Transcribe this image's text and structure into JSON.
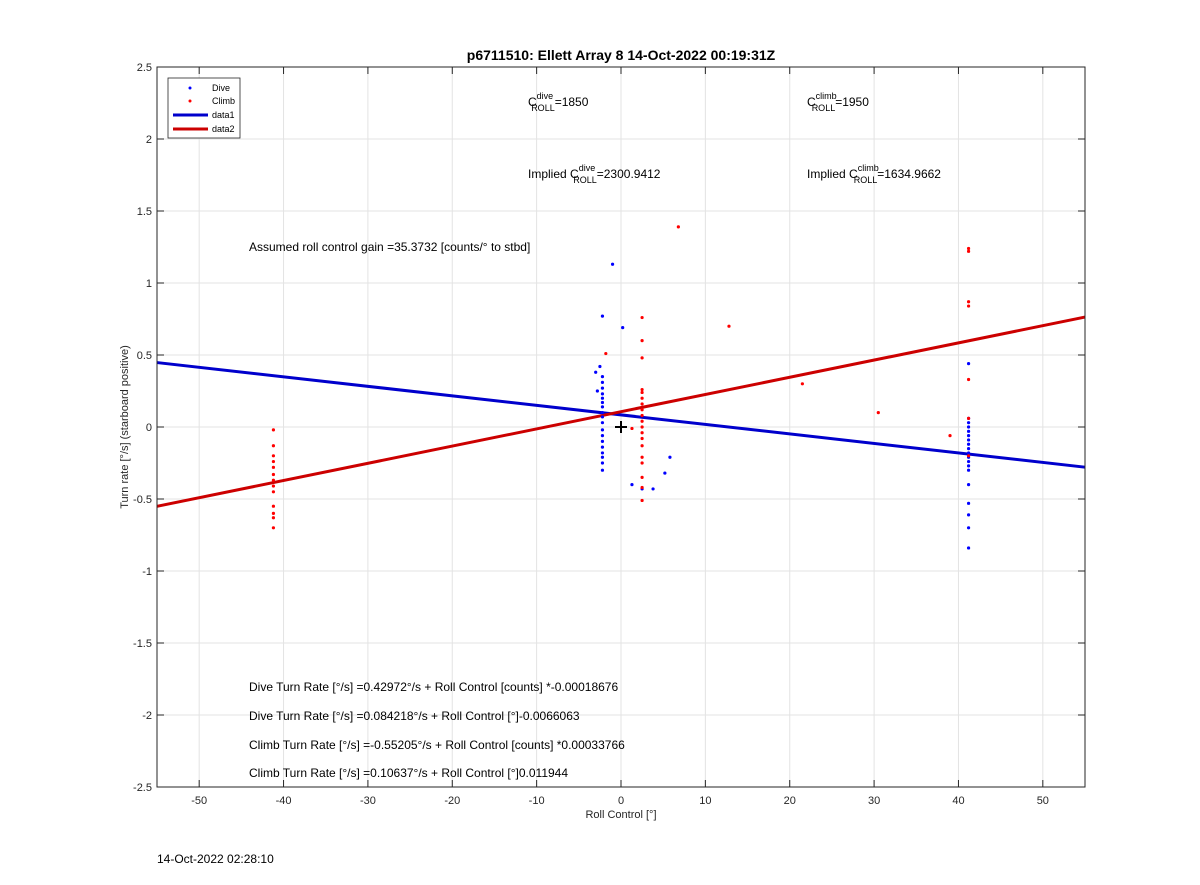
{
  "chart_data": {
    "type": "scatter",
    "title": "p6711510: Ellett Array 8 14-Oct-2022 00:19:31Z",
    "xlabel": "Roll Control [°]",
    "ylabel": "Turn rate [°/s] (starboard positive)",
    "xlim": [
      -55,
      55
    ],
    "ylim": [
      -2.5,
      2.5
    ],
    "xticks": [
      -50,
      -40,
      -30,
      -20,
      -10,
      0,
      10,
      20,
      30,
      40,
      50
    ],
    "yticks": [
      -2.5,
      -2,
      -1.5,
      -1,
      -0.5,
      0,
      0.5,
      1,
      1.5,
      2,
      2.5
    ],
    "xtick_labels": [
      "-50",
      "-40",
      "-30",
      "-20",
      "-10",
      "0",
      "10",
      "20",
      "30",
      "40",
      "50"
    ],
    "ytick_labels": [
      "-2.5",
      "-2",
      "-1.5",
      "-1",
      "-0.5",
      "0",
      "0.5",
      "1",
      "1.5",
      "2",
      "2.5"
    ],
    "grid": true,
    "legend_placement": "top-left",
    "series": [
      {
        "name": "Dive",
        "kind": "points",
        "color": "#0000ff",
        "points": [
          [
            -1,
            1.13
          ],
          [
            -2.2,
            0.77
          ],
          [
            0.2,
            0.69
          ],
          [
            -2.5,
            0.42
          ],
          [
            -3,
            0.38
          ],
          [
            -2.2,
            0.35
          ],
          [
            -2.2,
            0.31
          ],
          [
            -2.2,
            0.27
          ],
          [
            -2.2,
            0.23
          ],
          [
            -2.8,
            0.25
          ],
          [
            -2.2,
            0.2
          ],
          [
            -2.2,
            0.17
          ],
          [
            -2.2,
            0.14
          ],
          [
            -2.2,
            0.1
          ],
          [
            -2.2,
            0.07
          ],
          [
            -2.2,
            0.03
          ],
          [
            -2.2,
            -0.02
          ],
          [
            -2.2,
            -0.06
          ],
          [
            -2.2,
            -0.1
          ],
          [
            -2.2,
            -0.14
          ],
          [
            -2.2,
            -0.18
          ],
          [
            -2.2,
            -0.21
          ],
          [
            -2.2,
            -0.25
          ],
          [
            -2.2,
            -0.3
          ],
          [
            1.3,
            -0.4
          ],
          [
            2.5,
            -0.43
          ],
          [
            3.8,
            -0.43
          ],
          [
            5.2,
            -0.32
          ],
          [
            5.8,
            -0.21
          ],
          [
            41.2,
            0.44
          ],
          [
            41.2,
            0.06
          ],
          [
            41.2,
            0.03
          ],
          [
            41.2,
            0.0
          ],
          [
            41.2,
            -0.03
          ],
          [
            41.2,
            -0.06
          ],
          [
            41.2,
            -0.09
          ],
          [
            41.2,
            -0.12
          ],
          [
            41.2,
            -0.15
          ],
          [
            41.2,
            -0.18
          ],
          [
            41.2,
            -0.21
          ],
          [
            41.2,
            -0.24
          ],
          [
            41.2,
            -0.27
          ],
          [
            41.2,
            -0.3
          ],
          [
            41.2,
            -0.4
          ],
          [
            41.2,
            -0.53
          ],
          [
            41.2,
            -0.61
          ],
          [
            41.2,
            -0.7
          ],
          [
            41.2,
            -0.84
          ]
        ]
      },
      {
        "name": "Climb",
        "kind": "points",
        "color": "#ff0000",
        "points": [
          [
            -41.2,
            -0.02
          ],
          [
            -41.2,
            -0.13
          ],
          [
            -41.2,
            -0.2
          ],
          [
            -41.2,
            -0.24
          ],
          [
            -41.2,
            -0.28
          ],
          [
            -41.2,
            -0.33
          ],
          [
            -41.2,
            -0.37
          ],
          [
            -41.2,
            -0.41
          ],
          [
            -41.2,
            -0.45
          ],
          [
            -41.2,
            -0.55
          ],
          [
            -41.2,
            -0.6
          ],
          [
            -41.2,
            -0.63
          ],
          [
            -41.2,
            -0.7
          ],
          [
            6.8,
            1.39
          ],
          [
            -1.8,
            0.51
          ],
          [
            2.5,
            0.76
          ],
          [
            2.5,
            0.6
          ],
          [
            2.5,
            0.48
          ],
          [
            2.5,
            0.26
          ],
          [
            2.5,
            0.24
          ],
          [
            2.5,
            0.2
          ],
          [
            2.5,
            0.16
          ],
          [
            2.5,
            0.12
          ],
          [
            2.5,
            0.08
          ],
          [
            2.5,
            0.04
          ],
          [
            2.5,
            0.0
          ],
          [
            2.5,
            -0.04
          ],
          [
            2.5,
            -0.08
          ],
          [
            2.5,
            -0.13
          ],
          [
            2.5,
            -0.21
          ],
          [
            2.5,
            -0.25
          ],
          [
            2.5,
            -0.35
          ],
          [
            2.5,
            -0.42
          ],
          [
            2.5,
            -0.51
          ],
          [
            1.3,
            -0.01
          ],
          [
            12.8,
            0.7
          ],
          [
            21.5,
            0.3
          ],
          [
            30.5,
            0.1
          ],
          [
            39,
            -0.06
          ],
          [
            41.2,
            1.24
          ],
          [
            41.2,
            1.22
          ],
          [
            41.2,
            0.87
          ],
          [
            41.2,
            0.84
          ],
          [
            41.2,
            0.33
          ],
          [
            41.2,
            0.06
          ],
          [
            41.2,
            -0.2
          ]
        ]
      },
      {
        "name": "data1",
        "kind": "line",
        "color": "#0000cc",
        "x": [
          -55,
          55
        ],
        "y": [
          0.4475,
          -0.2791
        ]
      },
      {
        "name": "data2",
        "kind": "line",
        "color": "#cc0000",
        "x": [
          -55,
          55
        ],
        "y": [
          -0.5506,
          0.7633
        ]
      }
    ],
    "marker": {
      "name": "origin-cross",
      "x": 0,
      "y": 0
    },
    "annotations": {
      "c_dive": {
        "base": "C",
        "sup": "dive",
        "sub": "ROLL",
        "value": "=1850"
      },
      "c_climb": {
        "base": "C",
        "sup": "climb",
        "sub": "ROLL",
        "value": "=1950"
      },
      "implied_dive": {
        "prefix": "Implied ",
        "base": "C",
        "sup": "dive",
        "sub": "ROLL",
        "value": "=2300.9412"
      },
      "implied_climb": {
        "prefix": "Implied ",
        "base": "C",
        "sup": "climb",
        "sub": "ROLL",
        "value": "=1634.9662"
      },
      "gain": "Assumed roll control gain =35.3732 [counts/° to stbd]",
      "dive_counts": "Dive Turn Rate [°/s] =0.42972°/s + Roll Control [counts] *-0.00018676",
      "dive_deg": "Dive Turn Rate [°/s] =0.084218°/s + Roll Control [°]-0.0066063",
      "climb_counts": "Climb Turn Rate [°/s] =-0.55205°/s + Roll Control [counts] *0.00033766",
      "climb_deg": "Climb Turn Rate [°/s] =0.10637°/s + Roll Control [°]0.011944"
    }
  },
  "footer": {
    "timestamp": "14-Oct-2022 02:28:10"
  }
}
